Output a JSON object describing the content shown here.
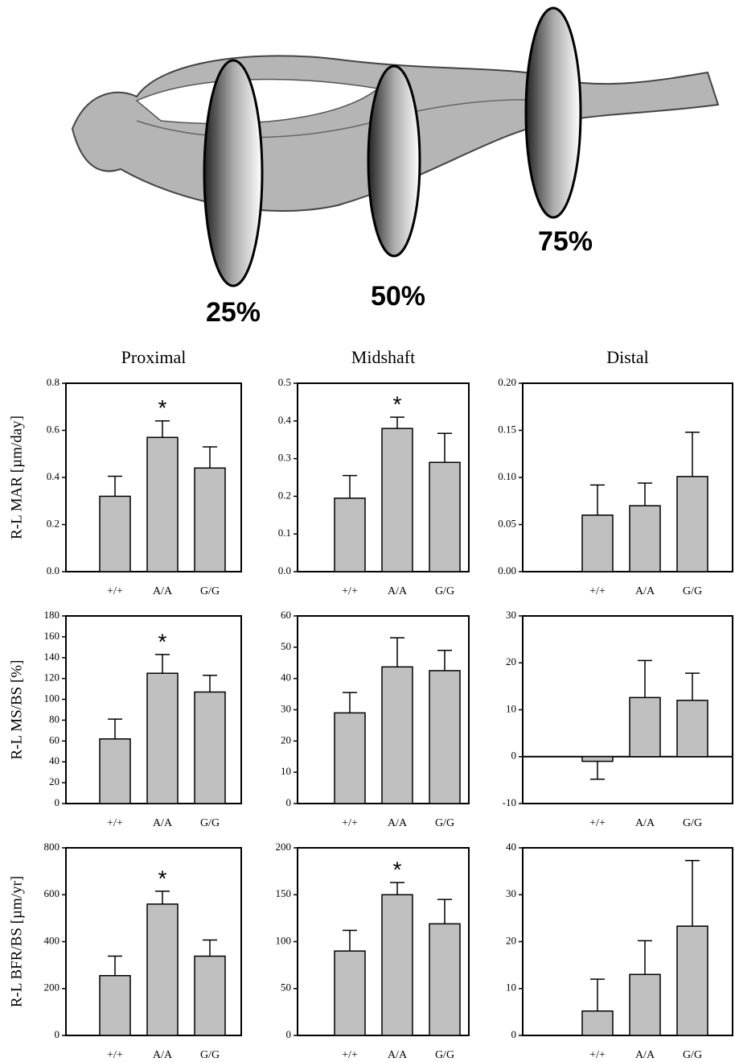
{
  "illustration": {
    "markers": [
      "25%",
      "50%",
      "75%"
    ]
  },
  "chart_data": [
    {
      "type": "bar",
      "title": "Proximal",
      "ylabel": "R-L MAR [µm/day]",
      "categories": [
        "+/+",
        "A/A",
        "G/G"
      ],
      "values": [
        0.32,
        0.57,
        0.44
      ],
      "errors": [
        0.085,
        0.07,
        0.09
      ],
      "color": "#c0c0c0",
      "ylim": [
        0,
        0.8
      ],
      "yticks": [
        {
          "value": 0,
          "label": "0.0"
        },
        0.2,
        0.4,
        0.6,
        0.8
      ],
      "annotations": [
        {
          "label": "*",
          "x": "A/A"
        }
      ]
    },
    {
      "type": "bar",
      "title": "Midshaft",
      "categories": [
        "+/+",
        "A/A",
        "G/G"
      ],
      "values": [
        0.195,
        0.38,
        0.29
      ],
      "errors": [
        0.06,
        0.03,
        0.077
      ],
      "color": "#c0c0c0",
      "ylim": [
        0,
        0.5
      ],
      "yticks": [
        {
          "value": 0,
          "label": "0.0"
        },
        0.1,
        0.2,
        0.3,
        0.4,
        0.5
      ],
      "annotations": [
        {
          "label": "*",
          "x": "A/A"
        }
      ]
    },
    {
      "type": "bar",
      "title": "Distal",
      "categories": [
        "+/+",
        "A/A",
        "G/G"
      ],
      "values": [
        0.06,
        0.07,
        0.101
      ],
      "errors": [
        0.032,
        0.024,
        0.047
      ],
      "color": "#c0c0c0",
      "ylim": [
        0,
        0.2
      ],
      "yticks": [
        {
          "value": 0,
          "label": "0.00"
        },
        {
          "value": 0.05,
          "label": "0.05"
        },
        {
          "value": 0.1,
          "label": "0.10"
        },
        {
          "value": 0.15,
          "label": "0.15"
        },
        {
          "value": 0.2,
          "label": "0.20"
        }
      ]
    },
    {
      "type": "bar",
      "ylabel": "R-L MS/BS [%]",
      "categories": [
        "+/+",
        "A/A",
        "G/G"
      ],
      "values": [
        62,
        125,
        107
      ],
      "errors": [
        19,
        18,
        16
      ],
      "color": "#c0c0c0",
      "ylim": [
        0,
        180
      ],
      "yticks": [
        0,
        20,
        40,
        60,
        80,
        100,
        120,
        140,
        160,
        180
      ],
      "annotations": [
        {
          "label": "*",
          "x": "A/A"
        }
      ]
    },
    {
      "type": "bar",
      "categories": [
        "+/+",
        "A/A",
        "G/G"
      ],
      "values": [
        29,
        43.7,
        42.5
      ],
      "errors": [
        6.5,
        9.3,
        6.5
      ],
      "color": "#c0c0c0",
      "ylim": [
        0,
        60
      ],
      "yticks": [
        0,
        10,
        20,
        30,
        40,
        50,
        60
      ]
    },
    {
      "type": "bar",
      "categories": [
        "+/+",
        "A/A",
        "G/G"
      ],
      "values": [
        -1,
        12.6,
        12
      ],
      "errors": [
        3.8,
        7.9,
        5.8
      ],
      "color": "#c0c0c0",
      "ylim": [
        -10,
        30
      ],
      "yticks": [
        -10,
        0,
        10,
        20,
        30
      ]
    },
    {
      "type": "bar",
      "ylabel": "R-L BFR/BS [µm/yr]",
      "categories": [
        "+/+",
        "A/A",
        "G/G"
      ],
      "values": [
        255,
        560,
        338
      ],
      "errors": [
        83,
        55,
        69
      ],
      "color": "#c0c0c0",
      "ylim": [
        0,
        800
      ],
      "yticks": [
        0,
        200,
        400,
        600,
        800
      ],
      "annotations": [
        {
          "label": "*",
          "x": "A/A"
        }
      ]
    },
    {
      "type": "bar",
      "categories": [
        "+/+",
        "A/A",
        "G/G"
      ],
      "values": [
        90,
        150,
        119
      ],
      "errors": [
        22,
        13,
        26
      ],
      "color": "#c0c0c0",
      "ylim": [
        0,
        200
      ],
      "yticks": [
        0,
        50,
        100,
        150,
        200
      ],
      "annotations": [
        {
          "label": "*",
          "x": "A/A"
        }
      ]
    },
    {
      "type": "bar",
      "categories": [
        "+/+",
        "A/A",
        "G/G"
      ],
      "values": [
        5.2,
        13,
        23.3
      ],
      "errors": [
        6.8,
        7.2,
        14
      ],
      "color": "#c0c0c0",
      "ylim": [
        0,
        40
      ],
      "yticks": [
        0,
        10,
        20,
        30,
        40
      ]
    }
  ]
}
